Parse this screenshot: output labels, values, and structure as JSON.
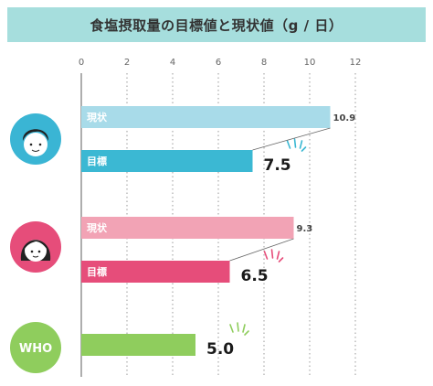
{
  "title": "食塩摂取量の目標値と現状値（g / 日）",
  "colors": {
    "title_bg": "#a6dedd",
    "male_current": "#a8dbe9",
    "male_target": "#3bb8d3",
    "male_circle": "#3ab5d4",
    "female_current": "#f2a3b5",
    "female_target": "#e64d7a",
    "female_circle": "#e64d7a",
    "who": "#8fcd5d",
    "who_circle": "#8fcd5d",
    "grid": "#999999"
  },
  "icons": {
    "male": "male-face-icon",
    "female": "female-face-icon"
  },
  "chart_data": {
    "type": "bar",
    "orientation": "horizontal",
    "title": "食塩摂取量の目標値と現状値（g / 日）",
    "xlim": [
      0,
      12
    ],
    "xticks": [
      0,
      2,
      4,
      6,
      8,
      10,
      12
    ],
    "grid": "dotted vertical",
    "groups": [
      {
        "group": "male",
        "bars": [
          {
            "label": "現状",
            "value": 10.9,
            "value_label": "10.9"
          },
          {
            "label": "目標",
            "value": 7.5,
            "value_label": "7.5"
          }
        ]
      },
      {
        "group": "female",
        "bars": [
          {
            "label": "現状",
            "value": 9.3,
            "value_label": "9.3"
          },
          {
            "label": "目標",
            "value": 6.5,
            "value_label": "6.5"
          }
        ]
      },
      {
        "group": "WHO",
        "group_label": "WHO",
        "bars": [
          {
            "label": "",
            "value": 5.0,
            "value_label": "5.0"
          }
        ]
      }
    ]
  }
}
